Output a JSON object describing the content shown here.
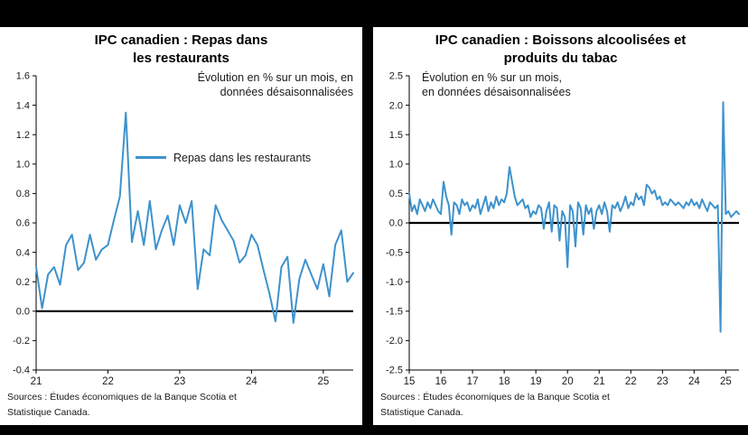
{
  "colors": {
    "line": "#3e92cc",
    "zero_line": "#000000",
    "panel_bg": "#ffffff",
    "frame_bg": "#000000"
  },
  "chart_data": [
    {
      "type": "line",
      "title": "IPC canadien : Repas dans\nles restaurants",
      "annotation": "Évolution en % sur un mois, en\ndonnées désaisonnalisées",
      "legend": "Repas dans les restaurants",
      "sources": "Sources : Études économiques de la Banque Scotia et\nStatistique Canada.",
      "line_color": "#3e92cc",
      "ylim": [
        -0.4,
        1.6
      ],
      "ystep": 0.2,
      "x_start_year": 2021,
      "x_tick_labels": [
        "21",
        "22",
        "23",
        "24",
        "25"
      ],
      "freq": "monthly",
      "values": [
        0.3,
        0.02,
        0.25,
        0.3,
        0.18,
        0.45,
        0.52,
        0.28,
        0.33,
        0.52,
        0.35,
        0.42,
        0.45,
        0.62,
        0.78,
        1.35,
        0.47,
        0.68,
        0.45,
        0.75,
        0.42,
        0.55,
        0.65,
        0.45,
        0.72,
        0.6,
        0.75,
        0.15,
        0.42,
        0.38,
        0.72,
        0.62,
        0.55,
        0.48,
        0.33,
        0.38,
        0.52,
        0.45,
        0.28,
        0.12,
        -0.07,
        0.3,
        0.37,
        -0.08,
        0.22,
        0.35,
        0.25,
        0.15,
        0.32,
        0.1,
        0.45,
        0.55,
        0.2,
        0.26
      ]
    },
    {
      "type": "line",
      "title": "IPC canadien : Boissons alcoolisées et\nproduits du tabac",
      "annotation": "Évolution en % sur un mois,\nen données désaisonnalisées",
      "legend": null,
      "sources": "Sources : Études économiques de la Banque Scotia et\nStatistique Canada.",
      "line_color": "#3e92cc",
      "ylim": [
        -2.5,
        2.5
      ],
      "ystep": 0.5,
      "x_start_year": 2015,
      "x_tick_labels": [
        "15",
        "16",
        "17",
        "18",
        "19",
        "20",
        "21",
        "22",
        "23",
        "24",
        "25"
      ],
      "freq": "monthly",
      "values": [
        0.5,
        0.2,
        0.3,
        0.15,
        0.4,
        0.3,
        0.2,
        0.35,
        0.25,
        0.4,
        0.3,
        0.2,
        0.15,
        0.7,
        0.45,
        0.3,
        -0.2,
        0.35,
        0.3,
        0.15,
        0.4,
        0.3,
        0.35,
        0.2,
        0.3,
        0.25,
        0.4,
        0.15,
        0.3,
        0.45,
        0.2,
        0.35,
        0.25,
        0.45,
        0.3,
        0.4,
        0.35,
        0.5,
        0.95,
        0.7,
        0.45,
        0.3,
        0.35,
        0.4,
        0.25,
        0.3,
        0.1,
        0.2,
        0.15,
        0.3,
        0.25,
        -0.1,
        0.2,
        0.35,
        -0.15,
        0.3,
        0.25,
        -0.3,
        0.2,
        0.1,
        -0.75,
        0.3,
        0.2,
        -0.4,
        0.35,
        0.25,
        -0.2,
        0.3,
        0.15,
        0.25,
        -0.1,
        0.2,
        0.3,
        0.15,
        0.35,
        0.2,
        -0.15,
        0.3,
        0.25,
        0.35,
        0.2,
        0.3,
        0.45,
        0.25,
        0.35,
        0.3,
        0.5,
        0.4,
        0.45,
        0.3,
        0.65,
        0.6,
        0.5,
        0.55,
        0.4,
        0.45,
        0.3,
        0.35,
        0.3,
        0.4,
        0.35,
        0.3,
        0.35,
        0.3,
        0.25,
        0.35,
        0.3,
        0.4,
        0.3,
        0.35,
        0.25,
        0.4,
        0.3,
        0.2,
        0.35,
        0.3,
        0.25,
        0.3,
        -1.85,
        2.05,
        0.15,
        0.2,
        0.1,
        0.15,
        0.2,
        0.15
      ]
    }
  ]
}
